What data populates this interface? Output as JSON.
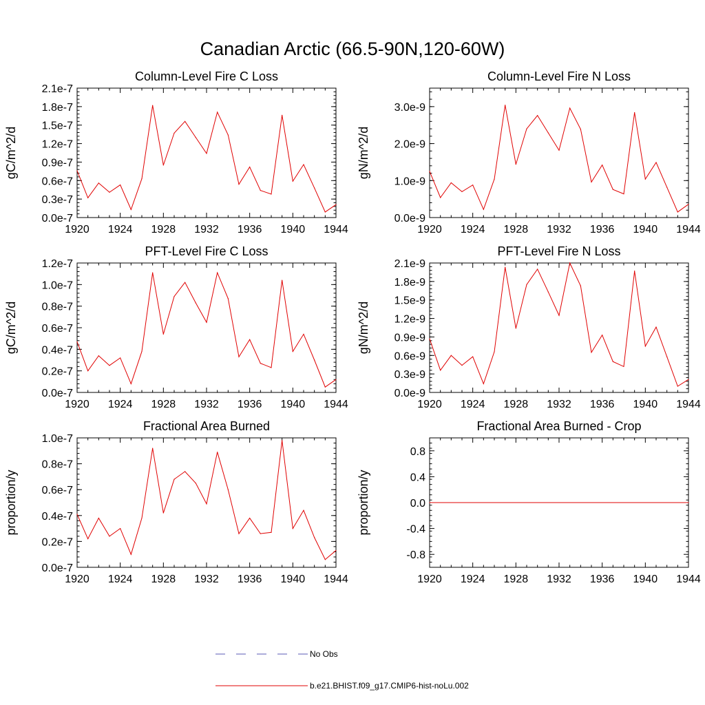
{
  "figure": {
    "title": "Canadian Arctic (66.5-90N,120-60W)"
  },
  "legend": {
    "obs_label": "No Obs",
    "obs_color": "#5a5ab4",
    "model_label": "b.e21.BHIST.f09_g17.CMIP6-hist-noLu.002",
    "model_color": "#e00000"
  },
  "chart_data": [
    {
      "type": "line",
      "title": "Column-Level Fire C Loss",
      "ylabel": "gC/m^2/d",
      "x_ticks": [
        "1920",
        "1924",
        "1928",
        "1932",
        "1936",
        "1940",
        "1944"
      ],
      "y_ticks": [
        "0.0e-7",
        "0.3e-7",
        "0.6e-7",
        "0.9e-7",
        "1.2e-7",
        "1.5e-7",
        "1.8e-7",
        "2.1e-7"
      ],
      "xlim": [
        1920,
        1944
      ],
      "ylim": [
        0,
        2.1e-07
      ],
      "series": [
        {
          "x": [
            1920,
            1921,
            1922,
            1923,
            1924,
            1925,
            1926,
            1927,
            1928,
            1929,
            1930,
            1931,
            1932,
            1933,
            1934,
            1935,
            1936,
            1937,
            1938,
            1939,
            1940,
            1941,
            1942,
            1943,
            1944
          ],
          "values": [
            7.6e-08,
            3.2e-08,
            5.6e-08,
            4.1e-08,
            5.3e-08,
            1.3e-08,
            6.3e-08,
            1.82e-07,
            8.5e-08,
            1.37e-07,
            1.56e-07,
            1.3e-07,
            1.04e-07,
            1.71e-07,
            1.34e-07,
            5.4e-08,
            8.2e-08,
            4.4e-08,
            3.8e-08,
            1.66e-07,
            5.9e-08,
            8.6e-08,
            4.8e-08,
            9e-09,
            2.1e-08
          ]
        }
      ]
    },
    {
      "type": "line",
      "title": "Column-Level Fire N Loss",
      "ylabel": "gN/m^2/d",
      "x_ticks": [
        "1920",
        "1924",
        "1928",
        "1932",
        "1936",
        "1940",
        "1944"
      ],
      "y_ticks": [
        "0.0e-9",
        "1.0e-9",
        "2.0e-9",
        "3.0e-9"
      ],
      "xlim": [
        1920,
        1944
      ],
      "ylim": [
        0,
        3.5e-09
      ],
      "series": [
        {
          "x": [
            1920,
            1921,
            1922,
            1923,
            1924,
            1925,
            1926,
            1927,
            1928,
            1929,
            1930,
            1931,
            1932,
            1933,
            1934,
            1935,
            1936,
            1937,
            1938,
            1939,
            1940,
            1941,
            1942,
            1943,
            1944
          ],
          "values": [
            1.25e-09,
            5.4e-10,
            9.4e-10,
            7e-10,
            8.8e-10,
            2.2e-10,
            1.04e-09,
            3.04e-09,
            1.44e-09,
            2.4e-09,
            2.76e-09,
            2.29e-09,
            1.82e-09,
            2.96e-09,
            2.39e-09,
            9.6e-10,
            1.42e-09,
            7.6e-10,
            6.4e-10,
            2.84e-09,
            1.04e-09,
            1.49e-09,
            8.2e-10,
            1.5e-10,
            3.6e-10
          ]
        }
      ]
    },
    {
      "type": "line",
      "title": "PFT-Level Fire C Loss",
      "ylabel": "gC/m^2/d",
      "x_ticks": [
        "1920",
        "1924",
        "1928",
        "1932",
        "1936",
        "1940",
        "1944"
      ],
      "y_ticks": [
        "0.0e-7",
        "0.2e-7",
        "0.4e-7",
        "0.6e-7",
        "0.8e-7",
        "1.0e-7",
        "1.2e-7"
      ],
      "xlim": [
        1920,
        1944
      ],
      "ylim": [
        0,
        1.2e-07
      ],
      "series": [
        {
          "x": [
            1920,
            1921,
            1922,
            1923,
            1924,
            1925,
            1926,
            1927,
            1928,
            1929,
            1930,
            1931,
            1932,
            1933,
            1934,
            1935,
            1936,
            1937,
            1938,
            1939,
            1940,
            1941,
            1942,
            1943,
            1944
          ],
          "values": [
            4.7e-08,
            2e-08,
            3.4e-08,
            2.5e-08,
            3.2e-08,
            8e-09,
            3.8e-08,
            1.11e-07,
            5.4e-08,
            8.9e-08,
            1.02e-07,
            8.3e-08,
            6.5e-08,
            1.11e-07,
            8.7e-08,
            3.3e-08,
            4.9e-08,
            2.7e-08,
            2.3e-08,
            1.04e-07,
            3.8e-08,
            5.4e-08,
            3e-08,
            5e-09,
            1.2e-08
          ]
        }
      ]
    },
    {
      "type": "line",
      "title": "PFT-Level Fire N Loss",
      "ylabel": "gN/m^2/d",
      "x_ticks": [
        "1920",
        "1924",
        "1928",
        "1932",
        "1936",
        "1940",
        "1944"
      ],
      "y_ticks": [
        "0.0e-9",
        "0.3e-9",
        "0.6e-9",
        "0.9e-9",
        "1.2e-9",
        "1.5e-9",
        "1.8e-9",
        "2.1e-9"
      ],
      "xlim": [
        1920,
        1944
      ],
      "ylim": [
        0,
        2.1e-09
      ],
      "series": [
        {
          "x": [
            1920,
            1921,
            1922,
            1923,
            1924,
            1925,
            1926,
            1927,
            1928,
            1929,
            1930,
            1931,
            1932,
            1933,
            1934,
            1935,
            1936,
            1937,
            1938,
            1939,
            1940,
            1941,
            1942,
            1943,
            1944
          ],
          "values": [
            8.7e-10,
            3.6e-10,
            6e-10,
            4.4e-10,
            5.8e-10,
            1.4e-10,
            6.6e-10,
            2.03e-09,
            1.04e-09,
            1.75e-09,
            2e-09,
            1.63e-09,
            1.25e-09,
            2.1e-09,
            1.73e-09,
            6.5e-10,
            9.3e-10,
            5e-10,
            4.2e-10,
            1.97e-09,
            7.5e-10,
            1.06e-09,
            5.8e-10,
            1e-10,
            2.1e-10
          ]
        }
      ]
    },
    {
      "type": "line",
      "title": "Fractional Area Burned",
      "ylabel": "proportion/y",
      "x_ticks": [
        "1920",
        "1924",
        "1928",
        "1932",
        "1936",
        "1940",
        "1944"
      ],
      "y_ticks": [
        "0.0e-7",
        "0.2e-7",
        "0.4e-7",
        "0.6e-7",
        "0.8e-7",
        "1.0e-7"
      ],
      "xlim": [
        1920,
        1944
      ],
      "ylim": [
        0,
        1e-07
      ],
      "series": [
        {
          "x": [
            1920,
            1921,
            1922,
            1923,
            1924,
            1925,
            1926,
            1927,
            1928,
            1929,
            1930,
            1931,
            1932,
            1933,
            1934,
            1935,
            1936,
            1937,
            1938,
            1939,
            1940,
            1941,
            1942,
            1943,
            1944
          ],
          "values": [
            4.1e-08,
            2.2e-08,
            3.8e-08,
            2.4e-08,
            3e-08,
            1e-08,
            3.8e-08,
            9.2e-08,
            4.2e-08,
            6.8e-08,
            7.4e-08,
            6.5e-08,
            4.9e-08,
            8.9e-08,
            6e-08,
            2.6e-08,
            3.8e-08,
            2.6e-08,
            2.7e-08,
            9.8e-08,
            3e-08,
            4.4e-08,
            2.3e-08,
            6e-09,
            1.3e-08
          ]
        }
      ]
    },
    {
      "type": "line",
      "title": "Fractional Area Burned - Crop",
      "ylabel": "proportion/y",
      "x_ticks": [
        "1920",
        "1924",
        "1928",
        "1932",
        "1936",
        "1940",
        "1944"
      ],
      "y_ticks": [
        "-0.8",
        "-0.4",
        "0.0",
        "0.4",
        "0.8"
      ],
      "xlim": [
        1920,
        1944
      ],
      "ylim": [
        -1.0,
        1.0
      ],
      "series": [
        {
          "x": [
            1920,
            1944
          ],
          "values": [
            0,
            0
          ]
        }
      ]
    }
  ]
}
